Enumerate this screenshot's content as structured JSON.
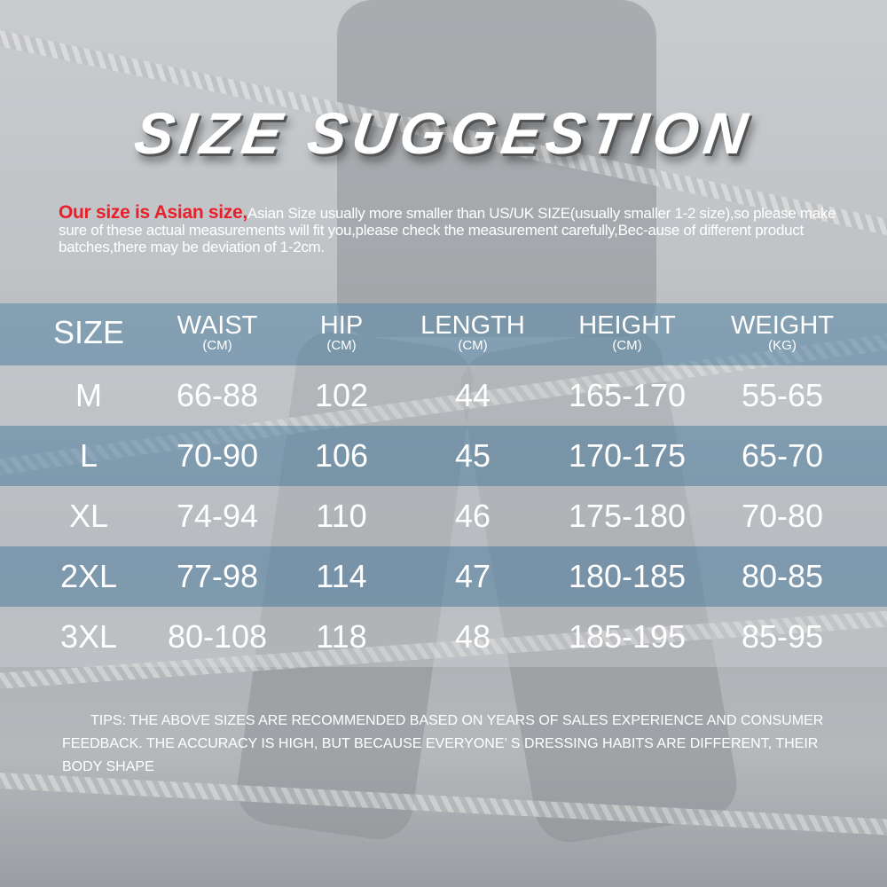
{
  "title": "SIZE SUGGESTION",
  "notice": {
    "highlight": "Our size is Asian size,",
    "text": "Asian Size usually more smaller than US/UK SIZE(usually smaller 1-2 size),so please make sure of these actual measurements will fit you,please check the measurement carefully,Bec-ause of different product batches,there may be deviation of 1-2cm."
  },
  "table": {
    "headers": [
      {
        "label": "SIZE",
        "unit": ""
      },
      {
        "label": "WAIST",
        "unit": "(CM)"
      },
      {
        "label": "HIP",
        "unit": "(CM)"
      },
      {
        "label": "LENGTH",
        "unit": "(CM)"
      },
      {
        "label": "HEIGHT",
        "unit": "(CM)"
      },
      {
        "label": "WEIGHT",
        "unit": "(KG)"
      }
    ],
    "rows": [
      [
        "M",
        "66-88",
        "102",
        "44",
        "165-170",
        "55-65"
      ],
      [
        "L",
        "70-90",
        "106",
        "45",
        "170-175",
        "65-70"
      ],
      [
        "XL",
        "74-94",
        "110",
        "46",
        "175-180",
        "70-80"
      ],
      [
        "2XL",
        "77-98",
        "114",
        "47",
        "180-185",
        "80-85"
      ],
      [
        "3XL",
        "80-108",
        "118",
        "48",
        "185-195",
        "85-95"
      ]
    ]
  },
  "tips": "TIPS: THE ABOVE SIZES ARE RECOMMENDED BASED ON YEARS OF SALES EXPERIENCE AND CONSUMER FEEDBACK. THE ACCURACY IS HIGH, BUT BECAUSE EVERYONE’ S DRESSING HABITS ARE DIFFERENT, THEIR BODY SHAPE",
  "colors": {
    "highlight": "#e8202a",
    "band": "#628caa"
  }
}
